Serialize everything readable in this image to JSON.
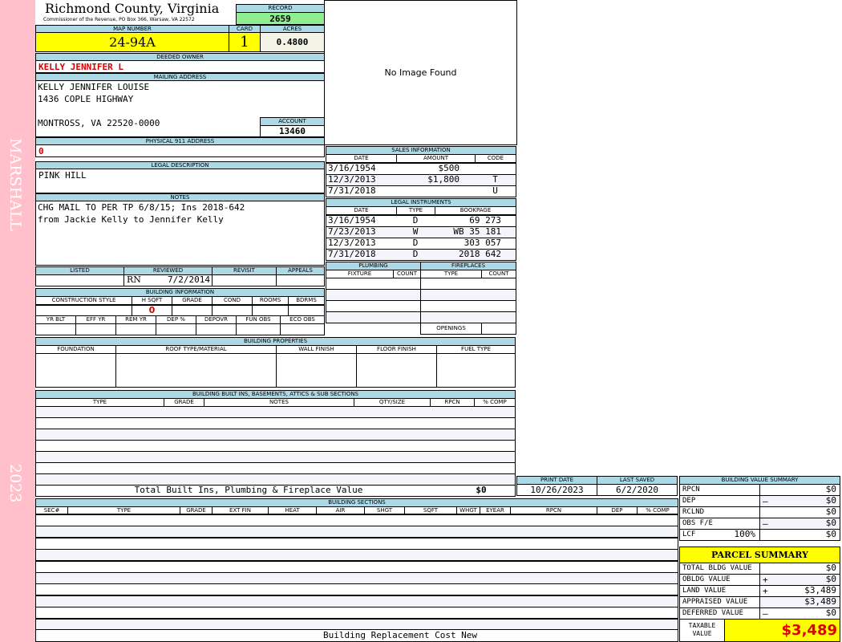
{
  "side": {
    "district": "MARSHALL",
    "year": "2023"
  },
  "header": {
    "county": "Richmond County, Virginia",
    "office": "Commissioner of the Revenue, PO Box 366, Warsaw, VA 22572",
    "record_label": "RECORD",
    "record": "2659",
    "map_label": "MAP NUMBER",
    "map": "24-94A",
    "card_label": "CARD",
    "card": "1",
    "acres_label": "ACRES",
    "acres": "0.4800"
  },
  "image": {
    "text": "No Image Found"
  },
  "owner": {
    "label": "DEEDED OWNER",
    "value": "KELLY JENNIFER L"
  },
  "mailing": {
    "label": "MAILING ADDRESS",
    "line1": "KELLY JENNIFER LOUISE",
    "line2": "1436 COPLE HIGHWAY",
    "line3": "MONTROSS, VA 22520-0000"
  },
  "account": {
    "label": "ACCOUNT",
    "value": "13460"
  },
  "physical": {
    "label": "PHYSICAL 911 ADDRESS",
    "value": "0"
  },
  "legal": {
    "label": "LEGAL DESCRIPTION",
    "value": "PINK HILL"
  },
  "notes": {
    "label": "NOTES",
    "line1": "CHG MAIL TO PER TP 6/8/15; Ins 2018-642",
    "line2": "from Jackie Kelly to Jennifer Kelly"
  },
  "review": {
    "headers": [
      "LISTED",
      "REVIEWED",
      "REVISIT",
      "APPEALS"
    ],
    "reviewer": "RN",
    "reviewed_date": "7/2/2014"
  },
  "building_info": {
    "label": "BUILDING INFORMATION",
    "headers1": [
      "CONSTRUCTION STYLE",
      "H SQFT",
      "GRADE",
      "COND",
      "ROOMS",
      "BDRMS"
    ],
    "hsqft": "0",
    "headers2": [
      "YR BLT",
      "EFF YR",
      "REM YR",
      "DEP %",
      "DEPOVR",
      "FUN OBS",
      "ECO OBS"
    ]
  },
  "sales": {
    "label": "SALES INFORMATION",
    "headers": [
      "DATE",
      "AMOUNT",
      "CODE"
    ],
    "rows": [
      [
        "3/16/1954",
        "$500",
        ""
      ],
      [
        "12/3/2013",
        "$1,800",
        "T"
      ],
      [
        "7/31/2018",
        "",
        "U"
      ]
    ]
  },
  "instruments": {
    "label": "LEGAL INSTRUMENTS",
    "headers": [
      "DATE",
      "TYPE",
      "BOOKPAGE"
    ],
    "rows": [
      [
        "3/16/1954",
        "D",
        "69 273"
      ],
      [
        "7/23/2013",
        "W",
        "WB 35 181"
      ],
      [
        "12/3/2013",
        "D",
        "303 057"
      ],
      [
        "7/31/2018",
        "D",
        "2018 642"
      ]
    ]
  },
  "plumbing": {
    "label": "PLUMBING",
    "headers": [
      "FIXTURE",
      "COUNT"
    ]
  },
  "fireplaces": {
    "label": "FIREPLACES",
    "headers": [
      "TYPE",
      "COUNT"
    ],
    "openings": "OPENINGS"
  },
  "properties": {
    "label": "BUILDING PROPERTIES",
    "headers": [
      "FOUNDATION",
      "ROOF TYPE/MATERIAL",
      "WALL FINISH",
      "FLOOR FINISH",
      "FUEL TYPE"
    ]
  },
  "builtins": {
    "label": "BUILDING BUILT INS, BASEMENTS, ATTICS & SUB SECTIONS",
    "headers": [
      "TYPE",
      "GRADE",
      "NOTES",
      "QTY/SIZE",
      "RPCN",
      "% COMP"
    ],
    "total_label": "Total Built Ins, Plumbing & Fireplace Value",
    "total": "$0"
  },
  "dates": {
    "print_label": "PRINT DATE",
    "print": "10/26/2023",
    "saved_label": "LAST SAVED",
    "saved": "6/2/2020"
  },
  "sections": {
    "label": "BUILDING SECTIONS",
    "headers": [
      "SEC#",
      "TYPE",
      "GRADE",
      "EXT FIN",
      "HEAT",
      "AIR",
      "SHGT",
      "SQFT",
      "WHGT",
      "EYEAR",
      "RPCN",
      "DEP",
      "% COMP"
    ],
    "footer": "Building Replacement Cost New"
  },
  "bvs": {
    "label": "BUILDING VALUE SUMMARY",
    "rows": [
      {
        "label": "RPCN",
        "extra": "",
        "sign": "",
        "value": "$0"
      },
      {
        "label": "DEP",
        "extra": "",
        "sign": "–",
        "value": "$0"
      },
      {
        "label": "RCLND",
        "extra": "",
        "sign": "",
        "value": "$0"
      },
      {
        "label": "OBS F/E",
        "extra": "",
        "sign": "–",
        "value": "$0"
      },
      {
        "label": "LCF",
        "extra": "100%",
        "sign": "",
        "value": "$0"
      }
    ]
  },
  "parcel": {
    "label": "PARCEL SUMMARY",
    "rows": [
      {
        "label": "TOTAL BLDG VALUE",
        "sign": "",
        "value": "$0"
      },
      {
        "label": "OBLDG VALUE",
        "sign": "+",
        "value": "$0"
      },
      {
        "label": "LAND VALUE",
        "sign": "+",
        "value": "$3,489"
      },
      {
        "label": "APPRAISED VALUE",
        "sign": "",
        "value": "$3,489"
      },
      {
        "label": "DEFERRED VALUE",
        "sign": "–",
        "value": "$0"
      }
    ],
    "taxable_label": "TAXABLE VALUE",
    "taxable": "$3,489"
  },
  "colors": {
    "header": "#add8e6",
    "side": "#ffc0cb",
    "highlight": "#ffff00",
    "record": "#90ee90",
    "owner": "#d40000"
  }
}
